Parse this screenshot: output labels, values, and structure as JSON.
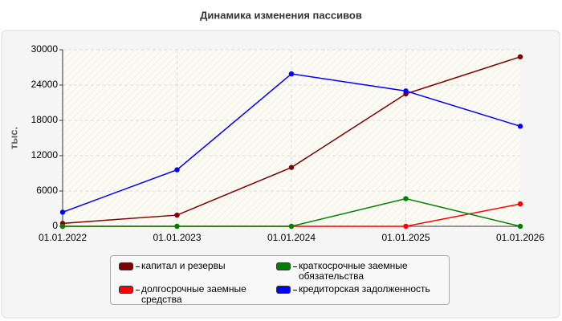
{
  "chart_data": {
    "type": "line",
    "title": "Динамика изменения пассивов",
    "y_label": "тыс.",
    "categories": [
      "01.01.2022",
      "01.01.2023",
      "01.01.2024",
      "01.01.2025",
      "01.01.2026"
    ],
    "series": [
      {
        "name": "капитал и резервы",
        "color": "#800000",
        "values": [
          500,
          1900,
          10000,
          22500,
          28800
        ]
      },
      {
        "name": "долгосрочные заемные средства",
        "color": "#ff0000",
        "values": [
          0,
          0,
          0,
          0,
          3800
        ]
      },
      {
        "name": "краткосрочные заемные обязательства",
        "color": "#008000",
        "values": [
          0,
          0,
          0,
          4700,
          0
        ]
      },
      {
        "name": "кредиторская задолженность",
        "color": "#0000ff",
        "values": [
          2400,
          9600,
          25900,
          23000,
          17000
        ]
      }
    ],
    "ylim": [
      0,
      30000
    ],
    "yticks": [
      0,
      6000,
      12000,
      18000,
      24000,
      30000
    ],
    "grid": true,
    "legend": "bottom"
  }
}
